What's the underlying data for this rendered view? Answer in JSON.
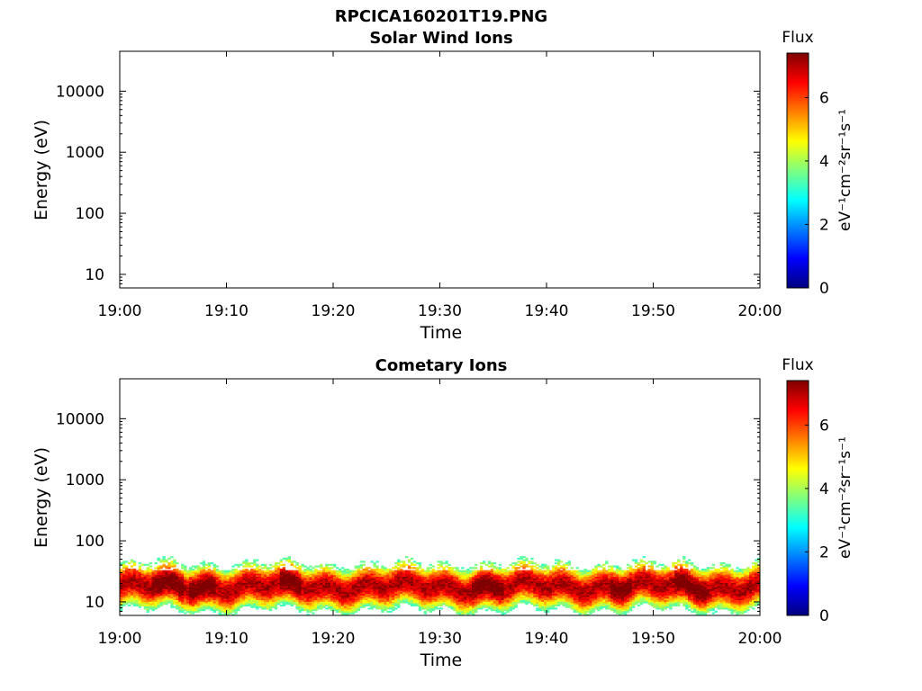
{
  "figure": {
    "main_title": "RPCICA160201T19.PNG"
  },
  "colormap": [
    "#00007f",
    "#0000ff",
    "#007fff",
    "#00ffff",
    "#7fff7f",
    "#ffff00",
    "#ff7f00",
    "#ff0000",
    "#7f0000"
  ],
  "chart_data": [
    {
      "type": "heatmap",
      "title": "Solar Wind Ions",
      "xlabel": "Time",
      "ylabel": "Energy (eV)",
      "x_ticks": [
        "19:00",
        "19:10",
        "19:20",
        "19:30",
        "19:40",
        "19:50",
        "20:00"
      ],
      "x_range_minutes": [
        0,
        60
      ],
      "y_scale": "log",
      "y_ticks": [
        "10",
        "100",
        "1000",
        "10000"
      ],
      "y_range": [
        6,
        45000
      ],
      "colorbar": {
        "title": "Flux",
        "label": "eV⁻¹cm⁻²sr⁻¹s⁻¹",
        "ticks": [
          "0",
          "2",
          "4",
          "6"
        ],
        "range": [
          0,
          7.4
        ]
      },
      "data": "empty"
    },
    {
      "type": "heatmap",
      "title": "Cometary Ions",
      "xlabel": "Time",
      "ylabel": "Energy (eV)",
      "x_ticks": [
        "19:00",
        "19:10",
        "19:20",
        "19:30",
        "19:40",
        "19:50",
        "20:00"
      ],
      "x_range_minutes": [
        0,
        60
      ],
      "y_scale": "log",
      "y_ticks": [
        "10",
        "100",
        "1000",
        "10000"
      ],
      "y_range": [
        6,
        45000
      ],
      "colorbar": {
        "title": "Flux",
        "label": "eV⁻¹cm⁻²sr⁻¹s⁻¹",
        "ticks": [
          "0",
          "2",
          "4",
          "6"
        ],
        "range": [
          0,
          7.4
        ]
      },
      "data": {
        "energy_band_eV": [
          6,
          80
        ],
        "peak_energy_eV": 18,
        "peak_flux": 7.0,
        "high_flux_intervals_min": [
          [
            3,
            6
          ],
          [
            6.5,
            9
          ],
          [
            15,
            17
          ],
          [
            33,
            36
          ],
          [
            46,
            48
          ],
          [
            52,
            55
          ]
        ]
      }
    }
  ]
}
